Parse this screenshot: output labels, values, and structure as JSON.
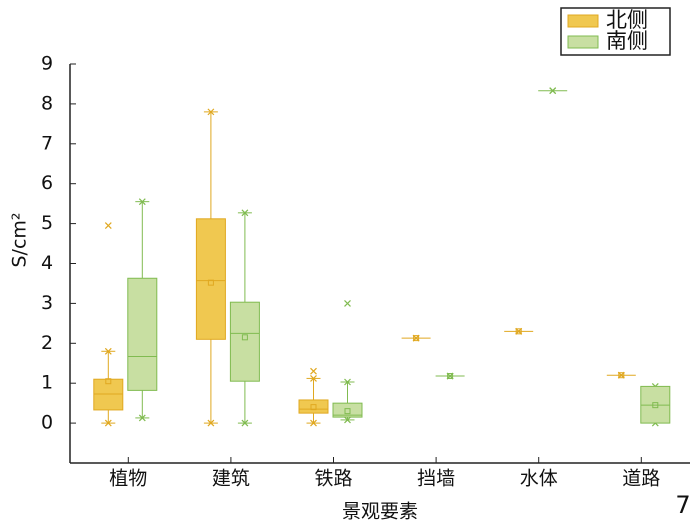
{
  "chart_data": {
    "type": "box",
    "x_label": "景观要素",
    "y_label": "S/cm²",
    "page_number": "7",
    "categories": [
      "植物",
      "建筑",
      "铁路",
      "挡墙",
      "水体",
      "道路"
    ],
    "ylim": [
      -1,
      9
    ],
    "yticks": [
      0,
      1,
      2,
      3,
      4,
      5,
      6,
      7,
      8,
      9
    ],
    "legend": "top-right",
    "series": [
      {
        "name": "北侧",
        "color": "#f0c850",
        "edge": "#e0a820",
        "boxes": [
          {
            "min": 0,
            "q1": 0.33,
            "median": 0.73,
            "q3": 1.1,
            "max": 1.8,
            "mean": 1.05,
            "outliers": [
              4.95
            ]
          },
          {
            "min": 0,
            "q1": 2.1,
            "median": 3.57,
            "q3": 5.12,
            "max": 7.8,
            "mean": 3.52,
            "outliers": []
          },
          {
            "min": 0,
            "q1": 0.25,
            "median": 0.35,
            "q3": 0.58,
            "max": 1.12,
            "mean": 0.4,
            "outliers": [
              1.3
            ]
          },
          {
            "min": 2.13,
            "q1": 2.13,
            "median": 2.13,
            "q3": 2.13,
            "max": 2.13,
            "mean": 2.13,
            "outliers": []
          },
          {
            "min": 2.3,
            "q1": 2.3,
            "median": 2.3,
            "q3": 2.3,
            "max": 2.3,
            "mean": 2.3,
            "outliers": []
          },
          {
            "min": 1.2,
            "q1": 1.2,
            "median": 1.2,
            "q3": 1.2,
            "max": 1.2,
            "mean": 1.2,
            "outliers": []
          }
        ]
      },
      {
        "name": "南侧",
        "color": "#c8dfa2",
        "edge": "#80bb50",
        "boxes": [
          {
            "min": 0.13,
            "q1": 0.82,
            "median": 1.67,
            "q3": 3.63,
            "max": 5.55,
            "mean": null,
            "outliers": []
          },
          {
            "min": 0,
            "q1": 1.05,
            "median": 2.25,
            "q3": 3.03,
            "max": 5.27,
            "mean": 2.15,
            "outliers": []
          },
          {
            "min": 0.08,
            "q1": 0.15,
            "median": 0.2,
            "q3": 0.5,
            "max": 1.03,
            "mean": 0.3,
            "outliers": [
              3.0
            ]
          },
          {
            "min": 1.18,
            "q1": 1.18,
            "median": 1.18,
            "q3": 1.18,
            "max": 1.18,
            "mean": 1.18,
            "outliers": []
          },
          {
            "min": 8.33,
            "q1": 8.33,
            "median": 8.33,
            "q3": 8.33,
            "max": 8.33,
            "mean": null,
            "outliers": []
          },
          {
            "min": 0,
            "q1": 0,
            "median": 0.45,
            "q3": 0.92,
            "max": 0.92,
            "mean": 0.45,
            "outliers": []
          }
        ]
      }
    ]
  }
}
